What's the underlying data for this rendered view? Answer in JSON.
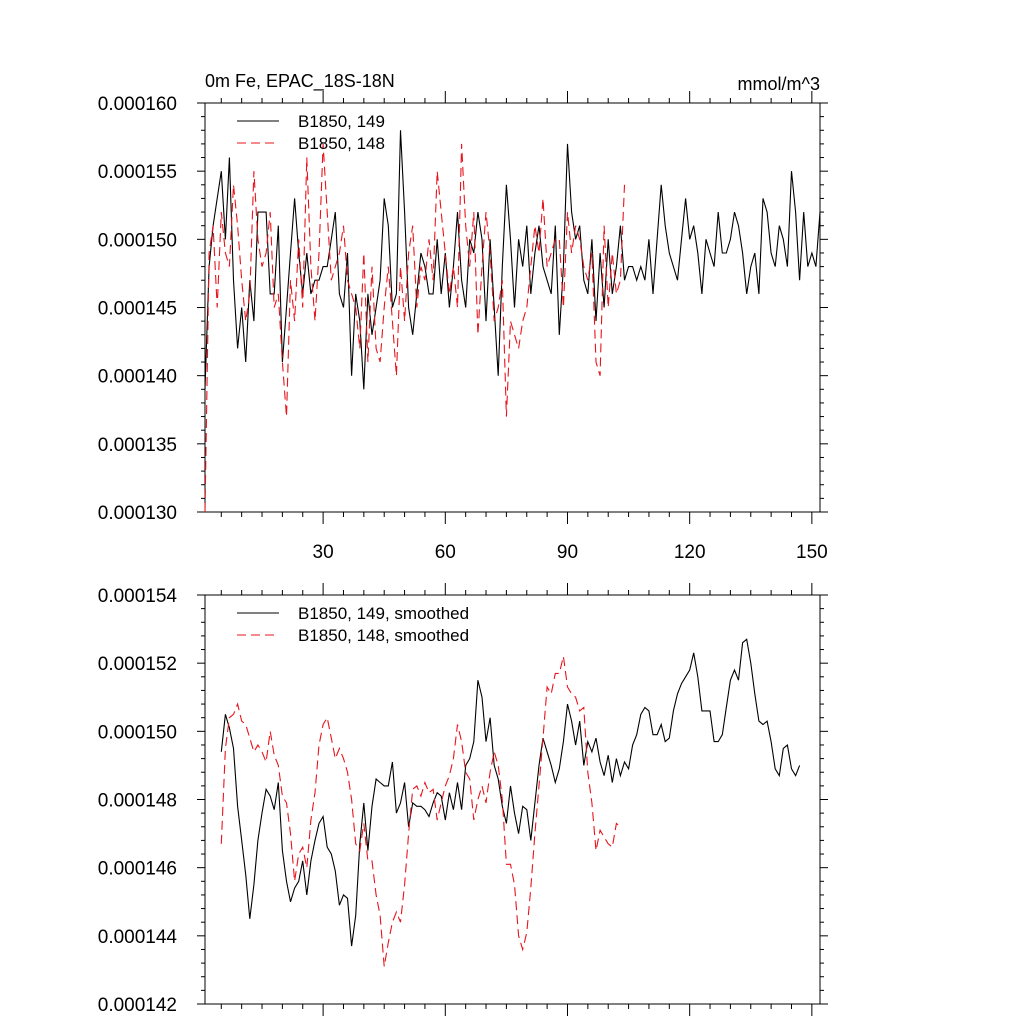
{
  "chart_data": [
    {
      "type": "line",
      "title": "0m Fe, EPAC_18S-18N",
      "units": "mmol/m^3",
      "xlim": [
        1,
        152
      ],
      "ylim": [
        0.00013,
        0.00016
      ],
      "yticks": [
        "0.000130",
        "0.000135",
        "0.000140",
        "0.000145",
        "0.000150",
        "0.000155",
        "0.000160"
      ],
      "xticks": [
        "30",
        "60",
        "90",
        "120",
        "150"
      ],
      "series": [
        {
          "name": "B1850, 149",
          "color": "#000000",
          "dash": "solid",
          "y": [
            0.000139,
            0.000148,
            0.000151,
            0.000153,
            0.000155,
            0.00015,
            0.000156,
            0.000147,
            0.000142,
            0.000145,
            0.000141,
            0.000147,
            0.000144,
            0.000152,
            0.000152,
            0.000152,
            0.000146,
            0.000146,
            0.000151,
            0.000141,
            0.000145,
            0.000149,
            0.000153,
            0.000149,
            0.000146,
            0.000149,
            0.000146,
            0.000147,
            0.000147,
            0.000148,
            0.000148,
            0.00015,
            0.000152,
            0.000146,
            0.000145,
            0.000149,
            0.00014,
            0.000146,
            0.000144,
            0.000139,
            0.000146,
            0.000143,
            0.000145,
            0.000147,
            0.000153,
            0.000151,
            0.000145,
            0.000146,
            0.000158,
            0.000152,
            0.000145,
            0.000143,
            0.000146,
            0.000149,
            0.000148,
            0.000146,
            0.000146,
            0.00015,
            0.000146,
            0.000149,
            0.000145,
            0.000148,
            0.000152,
            0.000147,
            0.000145,
            0.00015,
            0.000149,
            0.000152,
            0.00015,
            0.000144,
            0.00015,
            0.000145,
            0.00014,
            0.000148,
            0.000154,
            0.00015,
            0.000145,
            0.00015,
            0.000148,
            0.000151,
            0.000146,
            0.000149,
            0.000151,
            0.000148,
            0.000147,
            0.000146,
            0.000151,
            0.000143,
            0.000148,
            0.000157,
            0.000152,
            0.00015,
            0.000151,
            0.000147,
            0.000146,
            0.00015,
            0.000144,
            0.000149,
            0.000145,
            0.00015,
            0.000146,
            0.000148,
            0.000151,
            0.000147,
            0.000148,
            0.000148,
            0.000147,
            0.000148,
            0.000147,
            0.00015,
            0.000146,
            0.00015,
            0.000154,
            0.000151,
            0.000149,
            0.000148,
            0.000147,
            0.00015,
            0.000153,
            0.00015,
            0.000151,
            0.000149,
            0.000146,
            0.00015,
            0.000149,
            0.000148,
            0.000152,
            0.000149,
            0.000149,
            0.00015,
            0.000152,
            0.000151,
            0.000149,
            0.000146,
            0.000148,
            0.000149,
            0.000146,
            0.000153,
            0.000152,
            0.000149,
            0.000148,
            0.000151,
            0.00015,
            0.000148,
            0.000155,
            0.000152,
            0.000147,
            0.000152,
            0.000148,
            0.000149,
            0.000148,
            0.000152
          ]
        },
        {
          "name": "B1850, 148",
          "color": "#e8141c",
          "dash": "dashed",
          "y": [
            0.00013,
            0.000149,
            0.000151,
            0.000145,
            0.000152,
            0.000149,
            0.000148,
            0.000154,
            0.000151,
            0.000147,
            0.000144,
            0.000146,
            0.000155,
            0.00015,
            0.000148,
            0.000149,
            0.000152,
            0.000145,
            0.000146,
            0.000141,
            0.000137,
            0.000147,
            0.000144,
            0.00015,
            0.000145,
            0.000156,
            0.000148,
            0.000144,
            0.000149,
            0.000157,
            0.000152,
            0.000147,
            0.000148,
            0.000149,
            0.000151,
            0.000147,
            0.000146,
            0.000145,
            0.000142,
            0.000149,
            0.000141,
            0.000148,
            0.000142,
            0.000141,
            0.000145,
            0.000148,
            0.000144,
            0.00014,
            0.000148,
            0.000144,
            0.000149,
            0.000151,
            0.000145,
            0.000148,
            0.000147,
            0.00015,
            0.000147,
            0.000155,
            0.000152,
            0.000149,
            0.000146,
            0.000148,
            0.000145,
            0.000157,
            0.000151,
            0.000148,
            0.000152,
            0.000143,
            0.000148,
            0.000152,
            0.000149,
            0.000144,
            0.000145,
            0.000147,
            0.000137,
            0.000144,
            0.000143,
            0.000142,
            0.000144,
            0.000145,
            0.000148,
            0.000151,
            0.000149,
            0.000153,
            0.000148,
            0.000149,
            0.00015,
            0.00015,
            0.000145,
            0.000152,
            0.000149,
            0.000151,
            0.00015,
            0.000148,
            0.000147,
            0.000149,
            0.000141,
            0.00014,
            0.000151,
            0.000145,
            0.000149,
            0.000146,
            0.000147,
            0.000154
          ]
        }
      ]
    },
    {
      "type": "line",
      "title": "",
      "xlim": [
        1,
        152
      ],
      "ylim": [
        0.000142,
        0.000154
      ],
      "yticks": [
        "0.000142",
        "0.000144",
        "0.000146",
        "0.000148",
        "0.000150",
        "0.000152",
        "0.000154"
      ],
      "series": [
        {
          "name": "B1850, 149, smoothed",
          "color": "#000000",
          "dash": "solid",
          "x_start": 5,
          "y": [
            0.0001494,
            0.0001505,
            0.0001501,
            0.0001495,
            0.0001478,
            0.0001468,
            0.0001458,
            0.0001445,
            0.0001455,
            0.0001468,
            0.0001476,
            0.0001483,
            0.0001481,
            0.0001477,
            0.0001485,
            0.0001465,
            0.0001456,
            0.000145,
            0.0001454,
            0.0001456,
            0.0001462,
            0.0001452,
            0.0001462,
            0.0001468,
            0.0001473,
            0.0001475,
            0.0001466,
            0.0001464,
            0.0001459,
            0.0001449,
            0.0001452,
            0.0001451,
            0.0001437,
            0.0001446,
            0.0001467,
            0.0001479,
            0.0001465,
            0.0001478,
            0.0001486,
            0.0001485,
            0.0001484,
            0.0001484,
            0.0001491,
            0.0001476,
            0.0001479,
            0.0001485,
            0.0001472,
            0.0001479,
            0.0001478,
            0.0001478,
            0.0001477,
            0.0001475,
            0.0001479,
            0.0001482,
            0.0001481,
            0.0001474,
            0.0001482,
            0.0001477,
            0.0001485,
            0.0001477,
            0.000149,
            0.0001492,
            0.0001497,
            0.0001515,
            0.000151,
            0.0001497,
            0.0001504,
            0.000149,
            0.0001486,
            0.0001478,
            0.0001473,
            0.0001484,
            0.0001476,
            0.000147,
            0.0001478,
            0.0001477,
            0.0001468,
            0.0001479,
            0.000149,
            0.0001498,
            0.0001494,
            0.000149,
            0.0001485,
            0.0001489,
            0.0001497,
            0.0001508,
            0.0001503,
            0.0001496,
            0.0001503,
            0.000149,
            0.0001497,
            0.0001494,
            0.0001498,
            0.0001491,
            0.0001487,
            0.0001493,
            0.0001485,
            0.0001492,
            0.0001487,
            0.0001491,
            0.0001489,
            0.0001496,
            0.0001499,
            0.0001505,
            0.0001507,
            0.0001506,
            0.0001499,
            0.0001499,
            0.0001502,
            0.0001497,
            0.0001498,
            0.0001506,
            0.0001511,
            0.0001514,
            0.0001516,
            0.0001518,
            0.0001523,
            0.0001516,
            0.0001506,
            0.0001506,
            0.0001506,
            0.0001497,
            0.0001497,
            0.0001499,
            0.0001507,
            0.0001515,
            0.0001518,
            0.0001515,
            0.0001526,
            0.0001527,
            0.000152,
            0.0001511,
            0.0001503,
            0.0001502,
            0.0001503,
            0.0001497,
            0.0001489,
            0.0001487,
            0.0001495,
            0.0001496,
            0.0001489,
            0.0001487,
            0.000149
          ]
        },
        {
          "name": "B1850, 148, smoothed",
          "color": "#e8141c",
          "dash": "dashed",
          "x_start": 5,
          "y": [
            0.0001467,
            0.0001495,
            0.0001504,
            0.0001505,
            0.0001508,
            0.0001503,
            0.0001502,
            0.0001498,
            0.0001494,
            0.0001496,
            0.0001494,
            0.0001491,
            0.00015,
            0.0001493,
            0.000149,
            0.0001481,
            0.0001479,
            0.000147,
            0.0001456,
            0.0001464,
            0.0001466,
            0.000146,
            0.0001474,
            0.0001482,
            0.0001496,
            0.0001502,
            0.0001504,
            0.0001498,
            0.0001492,
            0.0001495,
            0.0001492,
            0.0001488,
            0.000148,
            0.0001467,
            0.0001465,
            0.0001473,
            0.0001462,
            0.0001462,
            0.0001452,
            0.0001446,
            0.0001431,
            0.0001438,
            0.0001444,
            0.0001447,
            0.0001444,
            0.0001455,
            0.000147,
            0.0001483,
            0.0001484,
            0.0001481,
            0.0001485,
            0.0001482,
            0.0001483,
            0.0001474,
            0.0001479,
            0.0001484,
            0.0001487,
            0.0001492,
            0.0001502,
            0.0001497,
            0.0001488,
            0.0001486,
            0.0001474,
            0.000148,
            0.0001484,
            0.0001479,
            0.0001488,
            0.0001494,
            0.000149,
            0.000148,
            0.0001461,
            0.0001461,
            0.0001455,
            0.000144,
            0.0001436,
            0.0001441,
            0.0001454,
            0.000147,
            0.0001484,
            0.0001498,
            0.0001513,
            0.0001511,
            0.0001517,
            0.0001517,
            0.0001522,
            0.0001513,
            0.0001511,
            0.000151,
            0.0001506,
            0.0001507,
            0.0001488,
            0.0001479,
            0.0001465,
            0.0001471,
            0.0001469,
            0.0001467,
            0.0001466,
            0.0001473,
            0.0001472
          ]
        }
      ]
    }
  ]
}
